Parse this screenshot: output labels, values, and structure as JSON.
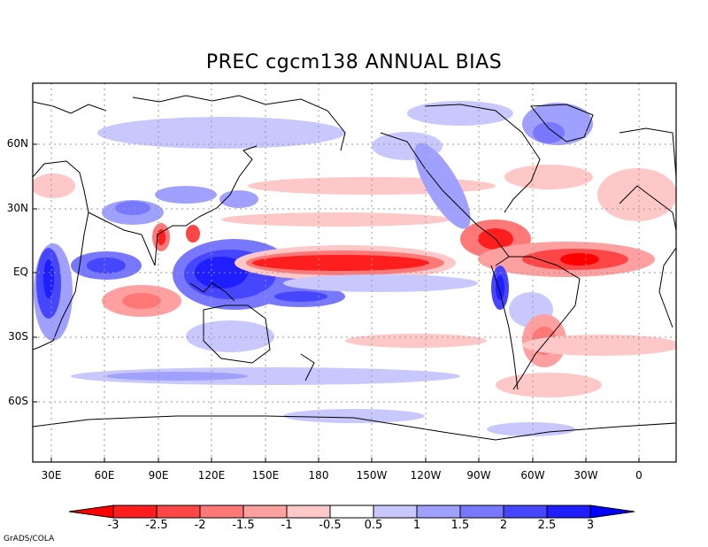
{
  "title": "PREC cgcm138 ANNUAL  BIAS",
  "credit": "GrADS/COLA",
  "lat_labels": [
    "60N",
    "30N",
    "EQ",
    "30S",
    "60S"
  ],
  "lon_labels": [
    "30E",
    "60E",
    "90E",
    "120E",
    "150E",
    "180",
    "150W",
    "120W",
    "90W",
    "60W",
    "30W",
    "0"
  ],
  "colorbar": {
    "labels": [
      "-3",
      "-2.5",
      "-2",
      "-1.5",
      "-1",
      "-0.5",
      "0.5",
      "1",
      "1.5",
      "2",
      "2.5",
      "3"
    ],
    "colors": [
      "#ff1e1e",
      "#ff4646",
      "#ff7878",
      "#ffa0a0",
      "#ffc8c8",
      "#ffffff",
      "#c8c8ff",
      "#a0a0ff",
      "#7878ff",
      "#4646ff",
      "#1e1eff"
    ],
    "low_color": "#ff0000",
    "high_color": "#0000ff"
  },
  "map_data": {
    "type": "filled-contour-map",
    "variable": "precipitation bias",
    "lat_range": [
      -90,
      90
    ],
    "lon_range": [
      15,
      375
    ],
    "contour_levels": [
      -3,
      -2.5,
      -2,
      -1.5,
      -1,
      -0.5,
      0.5,
      1,
      1.5,
      2,
      2.5,
      3
    ],
    "positive_color": "blue",
    "negative_color": "red"
  }
}
